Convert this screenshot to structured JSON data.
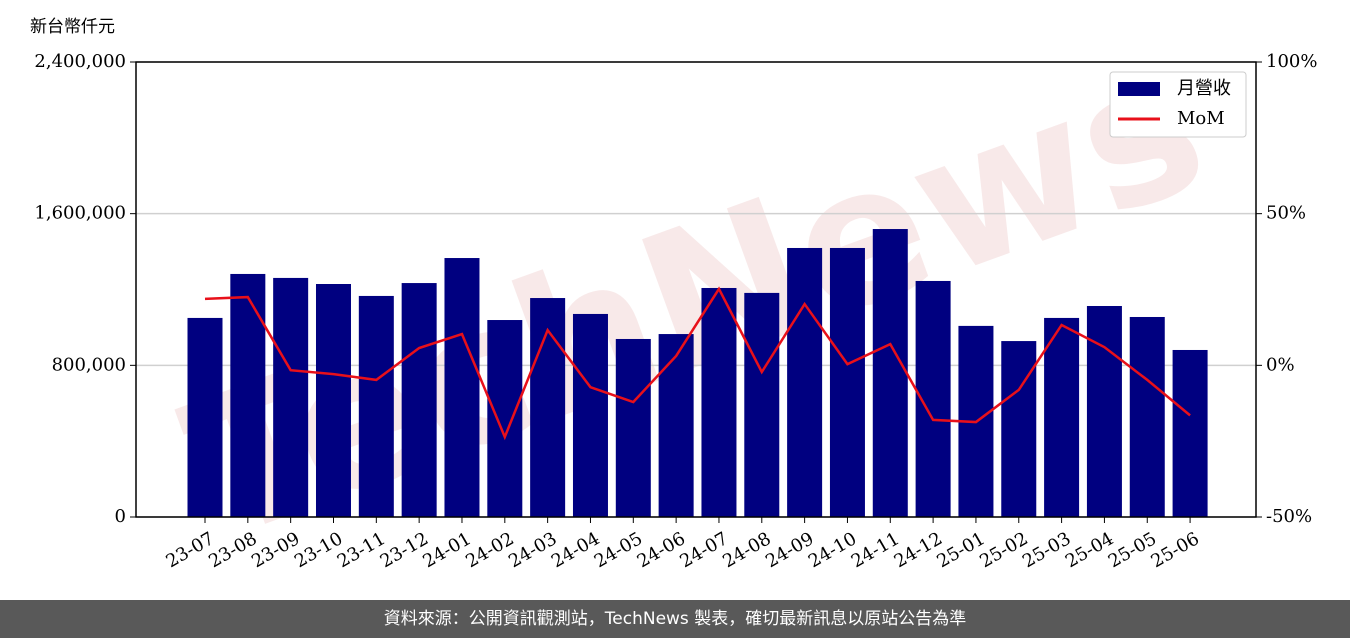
{
  "chart_data": {
    "type": "bar-line",
    "y_unit_label": "新台幣仟元",
    "watermark": "TechNews",
    "footer": "資料來源：公開資訊觀測站，TechNews 製表，確切最新訊息以原站公告為準",
    "categories": [
      "23-07",
      "23-08",
      "23-09",
      "23-10",
      "23-11",
      "23-12",
      "24-01",
      "24-02",
      "24-03",
      "24-04",
      "24-05",
      "24-06",
      "24-07",
      "24-08",
      "24-09",
      "24-10",
      "24-11",
      "24-12",
      "25-01",
      "25-02",
      "25-03",
      "25-04",
      "25-05",
      "25-06"
    ],
    "series": [
      {
        "name": "月營收",
        "type": "bar",
        "color": "#000080",
        "values": [
          1050000,
          1282000,
          1261000,
          1229000,
          1166000,
          1234000,
          1366000,
          1039000,
          1155000,
          1071000,
          939000,
          965000,
          1208000,
          1182000,
          1419000,
          1419000,
          1519000,
          1245000,
          1008000,
          928000,
          1050000,
          1113000,
          1055000,
          881000
        ]
      },
      {
        "name": "MoM",
        "type": "line",
        "axis": "y2",
        "color": "#e8101a",
        "values": [
          21.9,
          22.5,
          -1.6,
          -2.9,
          -4.8,
          5.7,
          10.3,
          -23.6,
          11.6,
          -7.2,
          -12.1,
          3.1,
          25.2,
          -2.2,
          20.2,
          0.4,
          7.0,
          -18.0,
          -18.7,
          -8.1,
          13.3,
          6.0,
          -4.8,
          -16.5
        ]
      }
    ],
    "ylim": [
      0,
      2400000
    ],
    "yticks": [
      0,
      {
        "value": 800000,
        "label": "800,000"
      },
      {
        "value": 1600000,
        "label": "1,600,000"
      },
      {
        "value": 2400000,
        "label": "2,400,000"
      }
    ],
    "y2lim": [
      -50,
      100
    ],
    "y2ticks": [
      {
        "value": -50,
        "label": "-50%"
      },
      {
        "value": 0,
        "label": "0%"
      },
      {
        "value": 50,
        "label": "50%"
      },
      {
        "value": 100,
        "label": "100%"
      }
    ],
    "grid": true,
    "legend": "upper right"
  }
}
